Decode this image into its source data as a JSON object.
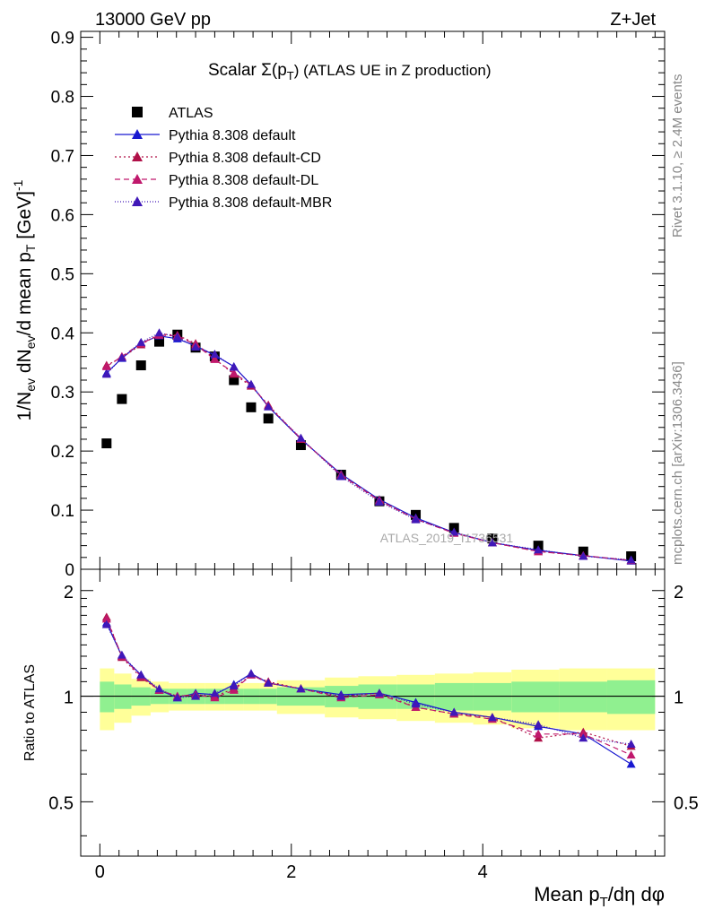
{
  "header": {
    "left": "13000 GeV pp",
    "right": "Z+Jet"
  },
  "title_parts": {
    "main": "Scalar Σ(p",
    "sub": "T",
    "tail": ") (ATLAS UE in Z production)"
  },
  "side_labels": {
    "rivet": "Rivet 3.1.10, ≥ 2.4M events",
    "mcplots": "mcplots.cern.ch [arXiv:1306.3436]"
  },
  "watermark": "ATLAS_2019_I1736531",
  "ylabel_top": {
    "p1": "1/N",
    "s1": "ev",
    "p2": " dN",
    "s2": "ev",
    "p3": "/d mean p",
    "s3": "T",
    "p4": " [GeV]",
    "sup": "-1"
  },
  "ylabel_bottom": "Ratio to ATLAS",
  "xlabel": {
    "p1": "Mean p",
    "s1": "T",
    "p2": "/dη dφ"
  },
  "legend": [
    {
      "label": "ATLAS",
      "marker": "square",
      "color": "#000000",
      "dash": ""
    },
    {
      "label": "Pythia 8.308 default",
      "marker": "triangle",
      "color": "#1818d0",
      "dash": ""
    },
    {
      "label": "Pythia 8.308 default-CD",
      "marker": "triangle",
      "color": "#b01048",
      "dash": "2,3"
    },
    {
      "label": "Pythia 8.308 default-DL",
      "marker": "triangle",
      "color": "#c0186c",
      "dash": "6,4"
    },
    {
      "label": "Pythia 8.308 default-MBR",
      "marker": "triangle",
      "color": "#4018b8",
      "dash": "1,2"
    }
  ],
  "chart_data": [
    {
      "type": "scatter",
      "panel": "main",
      "xlim": [
        -0.2,
        5.9
      ],
      "ylim": [
        0,
        0.91
      ],
      "y_ticks": [
        "0",
        "0.1",
        "0.2",
        "0.3",
        "0.4",
        "0.5",
        "0.6",
        "0.7",
        "0.8",
        "0.9"
      ],
      "x": [
        0.07,
        0.23,
        0.43,
        0.62,
        0.81,
        1.0,
        1.2,
        1.4,
        1.58,
        1.76,
        2.1,
        2.52,
        2.92,
        3.3,
        3.7,
        4.1,
        4.58,
        5.05,
        5.55
      ],
      "series": [
        {
          "name": "ATLAS",
          "values": [
            0.213,
            0.288,
            0.345,
            0.385,
            0.397,
            0.375,
            0.36,
            0.32,
            0.274,
            0.255,
            0.21,
            0.16,
            0.115,
            0.092,
            0.07,
            0.052,
            0.04,
            0.03,
            0.022
          ]
        },
        {
          "name": "Pythia 8.308 default",
          "values": [
            0.332,
            0.357,
            0.383,
            0.395,
            0.39,
            0.378,
            0.362,
            0.343,
            0.312,
            0.275,
            0.22,
            0.161,
            0.118,
            0.087,
            0.062,
            0.045,
            0.032,
            0.023,
            0.014
          ]
        },
        {
          "name": "Pythia 8.308 default-CD",
          "values": [
            0.345,
            0.358,
            0.38,
            0.398,
            0.396,
            0.382,
            0.356,
            0.33,
            0.31,
            0.278,
            0.22,
            0.16,
            0.117,
            0.085,
            0.062,
            0.045,
            0.03,
            0.023,
            0.015
          ]
        },
        {
          "name": "Pythia 8.308 default-DL",
          "values": [
            0.343,
            0.36,
            0.382,
            0.396,
            0.395,
            0.38,
            0.355,
            0.332,
            0.312,
            0.276,
            0.221,
            0.159,
            0.116,
            0.085,
            0.061,
            0.045,
            0.03,
            0.023,
            0.015
          ]
        },
        {
          "name": "Pythia 8.308 default-MBR",
          "values": [
            0.33,
            0.358,
            0.384,
            0.4,
            0.393,
            0.376,
            0.364,
            0.342,
            0.313,
            0.275,
            0.222,
            0.157,
            0.114,
            0.084,
            0.063,
            0.045,
            0.033,
            0.022,
            0.016
          ]
        }
      ]
    },
    {
      "type": "scatter",
      "panel": "ratio",
      "xlim": [
        -0.2,
        5.9
      ],
      "ylim": [
        0.35,
        2.3
      ],
      "y_ticks": [
        "0.5",
        "1",
        "2"
      ],
      "x_ticks": [
        "0",
        "2",
        "4"
      ],
      "x": [
        0.07,
        0.23,
        0.43,
        0.62,
        0.81,
        1.0,
        1.2,
        1.4,
        1.58,
        1.76,
        2.1,
        2.52,
        2.92,
        3.3,
        3.7,
        4.1,
        4.58,
        5.05,
        5.55
      ],
      "band_edges": [
        0.0,
        0.15,
        0.33,
        0.53,
        0.72,
        0.91,
        1.1,
        1.3,
        1.5,
        1.67,
        1.85,
        2.35,
        2.7,
        3.1,
        3.5,
        3.9,
        4.3,
        4.8,
        5.3,
        5.8
      ],
      "band_inner": [
        0.1,
        0.08,
        0.06,
        0.05,
        0.05,
        0.05,
        0.05,
        0.05,
        0.05,
        0.05,
        0.06,
        0.07,
        0.08,
        0.08,
        0.09,
        0.09,
        0.1,
        0.1,
        0.11
      ],
      "band_outer": [
        0.2,
        0.16,
        0.12,
        0.1,
        0.09,
        0.09,
        0.09,
        0.09,
        0.09,
        0.09,
        0.11,
        0.13,
        0.14,
        0.15,
        0.16,
        0.17,
        0.19,
        0.2,
        0.2
      ],
      "series": [
        {
          "name": "Pythia 8.308 default",
          "values": [
            1.62,
            1.3,
            1.15,
            1.04,
            0.99,
            1.02,
            1.01,
            1.08,
            1.16,
            1.09,
            1.05,
            1.01,
            1.02,
            0.96,
            0.9,
            0.87,
            0.82,
            0.78,
            0.64
          ]
        },
        {
          "name": "Pythia 8.308 default-CD",
          "values": [
            1.68,
            1.29,
            1.13,
            1.04,
            1.0,
            1.01,
            1.0,
            1.05,
            1.15,
            1.1,
            1.05,
            1.0,
            1.02,
            0.93,
            0.89,
            0.87,
            0.76,
            0.79,
            0.72
          ]
        },
        {
          "name": "Pythia 8.308 default-DL",
          "values": [
            1.66,
            1.3,
            1.14,
            1.04,
            1.0,
            1.01,
            0.99,
            1.04,
            1.15,
            1.09,
            1.05,
            0.99,
            1.01,
            0.93,
            0.89,
            0.86,
            0.78,
            0.78,
            0.68
          ]
        },
        {
          "name": "Pythia 8.308 default-MBR",
          "values": [
            1.6,
            1.31,
            1.15,
            1.05,
            0.99,
            1.0,
            1.02,
            1.07,
            1.16,
            1.09,
            1.05,
            1.0,
            1.02,
            0.95,
            0.9,
            0.87,
            0.83,
            0.76,
            0.73
          ]
        }
      ]
    }
  ]
}
